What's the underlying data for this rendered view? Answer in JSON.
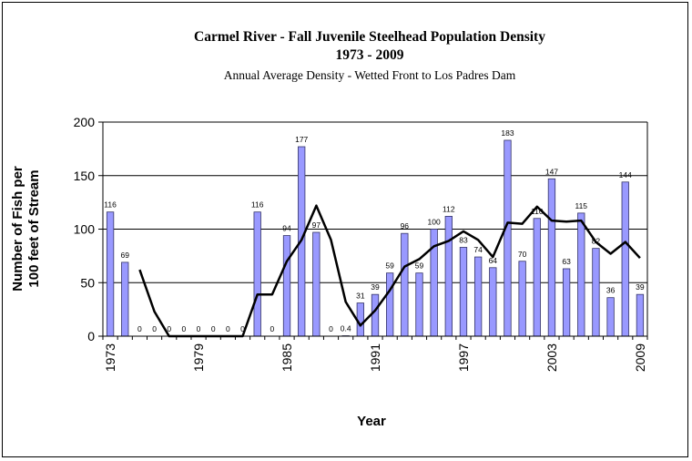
{
  "chart_data": {
    "type": "bar",
    "title": "Carmel River - Fall Juvenile Steelhead Population Density",
    "subtitle": "1973 - 2009",
    "subtitle2": "Annual Average Density - Wetted Front to Los Padres Dam",
    "ylabel_line1": "Number of Fish per",
    "ylabel_line2": "100 feet of Stream",
    "xlabel": "Year",
    "ylim": [
      0,
      200
    ],
    "yticks": [
      "0",
      "50",
      "100",
      "150",
      "200"
    ],
    "xticks": [
      "1973",
      "1979",
      "1985",
      "1991",
      "1997",
      "2003",
      "2009"
    ],
    "grid": true,
    "bar_color": "#9999ff",
    "line_color": "#000000",
    "years": [
      1973,
      1974,
      1975,
      1976,
      1977,
      1978,
      1979,
      1980,
      1981,
      1982,
      1983,
      1984,
      1985,
      1986,
      1987,
      1988,
      1989,
      1990,
      1991,
      1992,
      1993,
      1994,
      1995,
      1996,
      1997,
      1998,
      1999,
      2000,
      2001,
      2002,
      2003,
      2004,
      2005,
      2006,
      2007,
      2008,
      2009
    ],
    "values": [
      116,
      69,
      0,
      0,
      0,
      0,
      0,
      0,
      0,
      0,
      116,
      0,
      94,
      177,
      97,
      0,
      0.4,
      31,
      39,
      59,
      96,
      59,
      100,
      112,
      83,
      74,
      64,
      183,
      70,
      110,
      147,
      63,
      115,
      82,
      36,
      144,
      39
    ],
    "labels": [
      "116",
      "69",
      "0",
      "0",
      "0",
      "0",
      "0",
      "0",
      "0",
      "0",
      "116",
      "0",
      "94",
      "177",
      "97",
      "0",
      "0.4",
      "31",
      "39",
      "59",
      "96",
      "59",
      "100",
      "112",
      "83",
      "74",
      "64",
      "183",
      "70",
      "110",
      "147",
      "63",
      "115",
      "82",
      "36",
      "144",
      "39"
    ],
    "moving_average": [
      null,
      null,
      62,
      23,
      0,
      0,
      0,
      0,
      0,
      0,
      39,
      39,
      70,
      90,
      122,
      90,
      32,
      10,
      24,
      43,
      65,
      72,
      84,
      89,
      98,
      90,
      74,
      106,
      105,
      121,
      108,
      107,
      108,
      88,
      77,
      88,
      73
    ]
  }
}
